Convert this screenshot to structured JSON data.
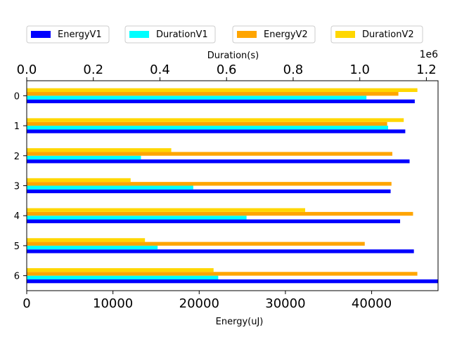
{
  "chart_data": {
    "type": "bar",
    "orientation": "horizontal",
    "categories": [
      "0",
      "1",
      "2",
      "3",
      "4",
      "5",
      "6"
    ],
    "series": [
      {
        "name": "EnergyV1",
        "axis": "bottom",
        "color": "#0000ff",
        "values": [
          45000,
          43900,
          44400,
          42200,
          43300,
          44900,
          47700
        ]
      },
      {
        "name": "DurationV1",
        "axis": "top",
        "color": "#00ffff",
        "values": [
          1020000,
          1085000,
          343000,
          500000,
          660000,
          393000,
          575000
        ]
      },
      {
        "name": "EnergyV2",
        "axis": "bottom",
        "color": "#ffa500",
        "values": [
          43100,
          41800,
          42400,
          42300,
          44800,
          39200,
          45300
        ]
      },
      {
        "name": "DurationV2",
        "axis": "top",
        "color": "#ffd700",
        "values": [
          1173000,
          1132000,
          434000,
          312000,
          836000,
          355000,
          561000
        ]
      }
    ],
    "bottom_axis": {
      "label": "Energy(uJ)",
      "range": [
        0,
        47700
      ],
      "ticks": [
        0,
        10000,
        20000,
        30000,
        40000
      ],
      "tick_labels": [
        "0",
        "10000",
        "20000",
        "30000",
        "40000"
      ]
    },
    "top_axis": {
      "label": "Duration(s)",
      "range": [
        0,
        1235000
      ],
      "ticks": [
        0,
        200000,
        400000,
        600000,
        800000,
        1000000,
        1200000
      ],
      "tick_labels": [
        "0.0",
        "0.2",
        "0.4",
        "0.6",
        "0.8",
        "1.0",
        "1.2"
      ],
      "offset_text": "1e6"
    },
    "legend": {
      "placement": "top, above plot, 4 columns",
      "entries": [
        "EnergyV1",
        "DurationV1",
        "EnergyV2",
        "DurationV2"
      ]
    },
    "grid": false
  }
}
